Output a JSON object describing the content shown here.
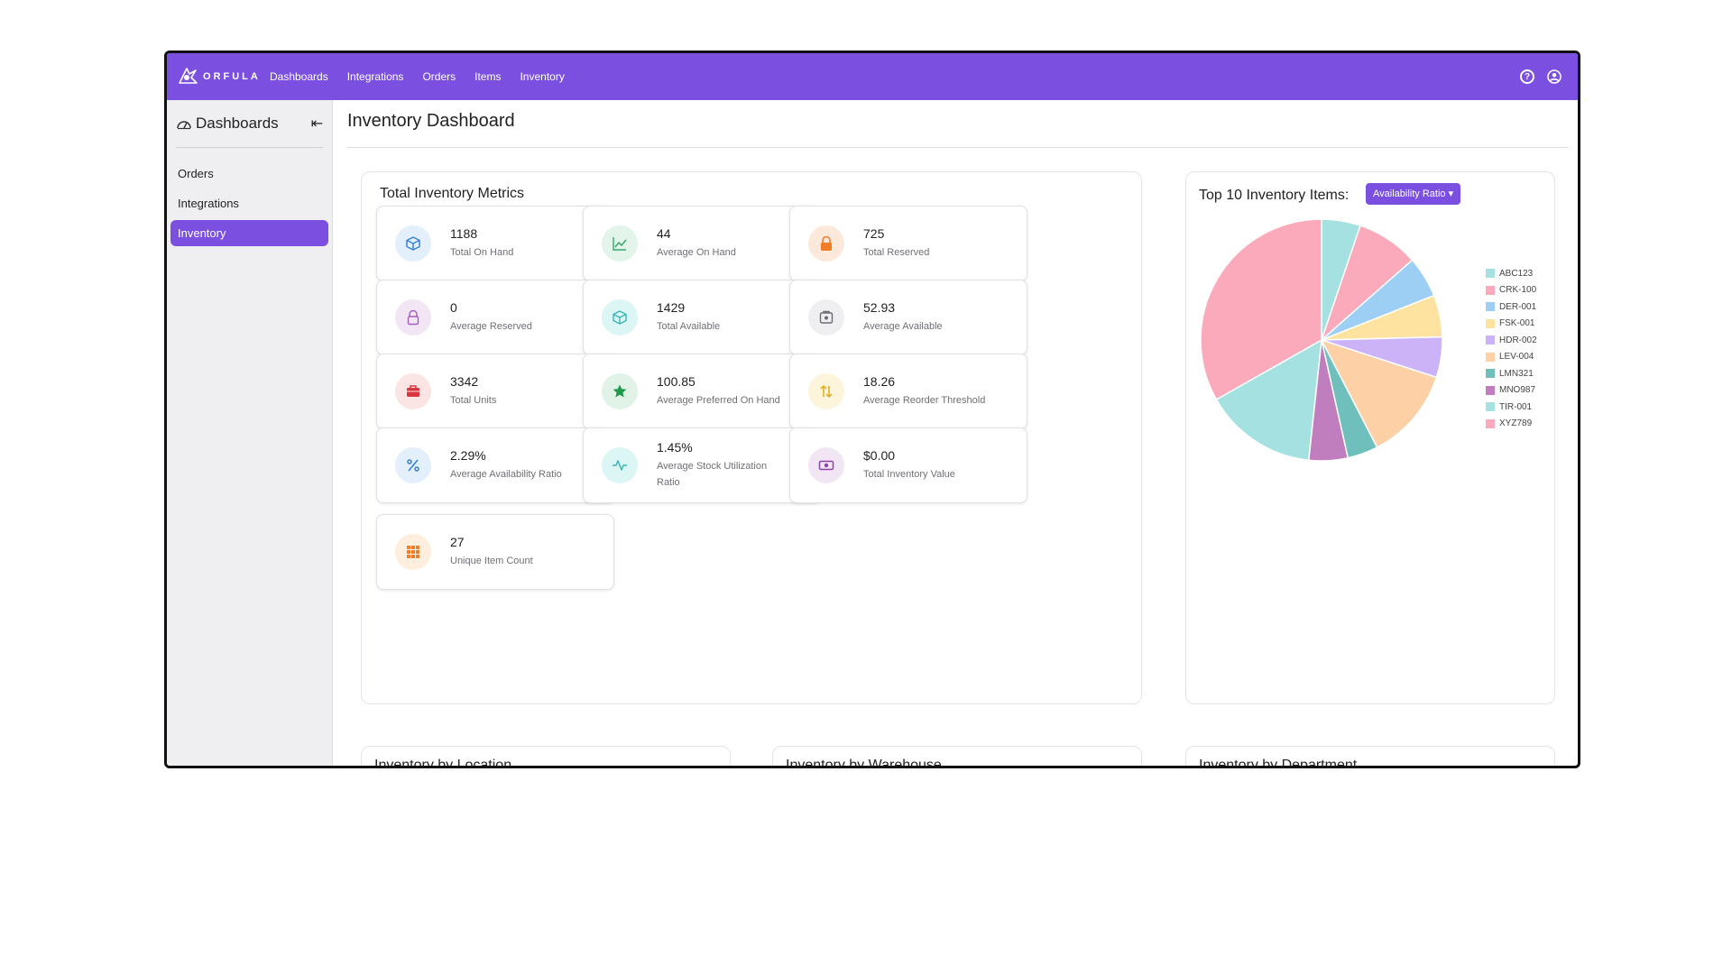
{
  "brand": {
    "name": "ORFULA",
    "accent": "#7b4fe0"
  },
  "topnav": {
    "links": [
      "Dashboards",
      "Integrations",
      "Orders",
      "Items",
      "Inventory"
    ],
    "icons": [
      "help-icon",
      "user-icon"
    ]
  },
  "sidebar": {
    "title": "Dashboards",
    "items": [
      {
        "label": "Orders",
        "active": false
      },
      {
        "label": "Integrations",
        "active": false
      },
      {
        "label": "Inventory",
        "active": true
      }
    ]
  },
  "page": {
    "title": "Inventory Dashboard"
  },
  "metrics_panel": {
    "title": "Total Inventory Metrics",
    "metrics": [
      {
        "value": "1188",
        "label": "Total On Hand",
        "icon": "box-icon",
        "bg": "#e3effb",
        "color": "#3b82d6"
      },
      {
        "value": "44",
        "label": "Average On Hand",
        "icon": "line-chart-icon",
        "bg": "#e3f5ea",
        "color": "#3aa76d"
      },
      {
        "value": "725",
        "label": "Total Reserved",
        "icon": "lock-icon",
        "bg": "#fde9dc",
        "color": "#f07e28"
      },
      {
        "value": "0",
        "label": "Average Reserved",
        "icon": "unlock-icon",
        "bg": "#f2e6f5",
        "color": "#a65cc0"
      },
      {
        "value": "1429",
        "label": "Total Available",
        "icon": "cube-icon",
        "bg": "#dcf5f5",
        "color": "#3ab6b6"
      },
      {
        "value": "52.93",
        "label": "Average Available",
        "icon": "safe-icon",
        "bg": "#efeff1",
        "color": "#6b6b73"
      },
      {
        "value": "3342",
        "label": "Total Units",
        "icon": "toolbox-icon",
        "bg": "#fbe4e4",
        "color": "#d9363e"
      },
      {
        "value": "100.85",
        "label": "Average Preferred On Hand",
        "icon": "star-icon",
        "bg": "#e1f3e6",
        "color": "#1e9a4a"
      },
      {
        "value": "18.26",
        "label": "Average Reorder Threshold",
        "icon": "swap-icon",
        "bg": "#fcf5dc",
        "color": "#e2ac1b"
      },
      {
        "value": "2.29%",
        "label": "Average Availability Ratio",
        "icon": "percent-icon",
        "bg": "#e3effb",
        "color": "#3b82d6"
      },
      {
        "value": "1.45%",
        "label": "Average Stock Utilization Ratio",
        "icon": "activity-icon",
        "bg": "#dcf5f5",
        "color": "#3ab6b6"
      },
      {
        "value": "$0.00",
        "label": "Total Inventory Value",
        "icon": "cash-icon",
        "bg": "#f2e6f5",
        "color": "#8a45a8"
      },
      {
        "value": "27",
        "label": "Unique Item Count",
        "icon": "grid-icon",
        "bg": "#fdeede",
        "color": "#f07e28"
      }
    ]
  },
  "top10_panel": {
    "title": "Top 10 Inventory Items:",
    "dropdown": {
      "selected": "Availability Ratio"
    }
  },
  "chart_data": {
    "type": "pie",
    "legend_position": "right",
    "categories": [
      "ABC123",
      "CRK-100",
      "DER-001",
      "FSK-001",
      "HDR-002",
      "LEV-004",
      "LMN321",
      "MNO987",
      "TIR-001",
      "XYZ789"
    ],
    "values": [
      5.2,
      8.3,
      5.5,
      5.6,
      5.4,
      12.4,
      4.1,
      5.2,
      15.1,
      33.2
    ],
    "colors": [
      "#a6e1e1",
      "#fbaabb",
      "#9ccff3",
      "#fde2a0",
      "#ccb3f8",
      "#fdd0a6",
      "#6fbfbd",
      "#c07ebf",
      "#a6e1e1",
      "#fbaabb"
    ]
  },
  "bottom_panels": [
    {
      "title": "Inventory by Location"
    },
    {
      "title": "Inventory by Warehouse"
    },
    {
      "title": "Inventory by Department"
    }
  ]
}
